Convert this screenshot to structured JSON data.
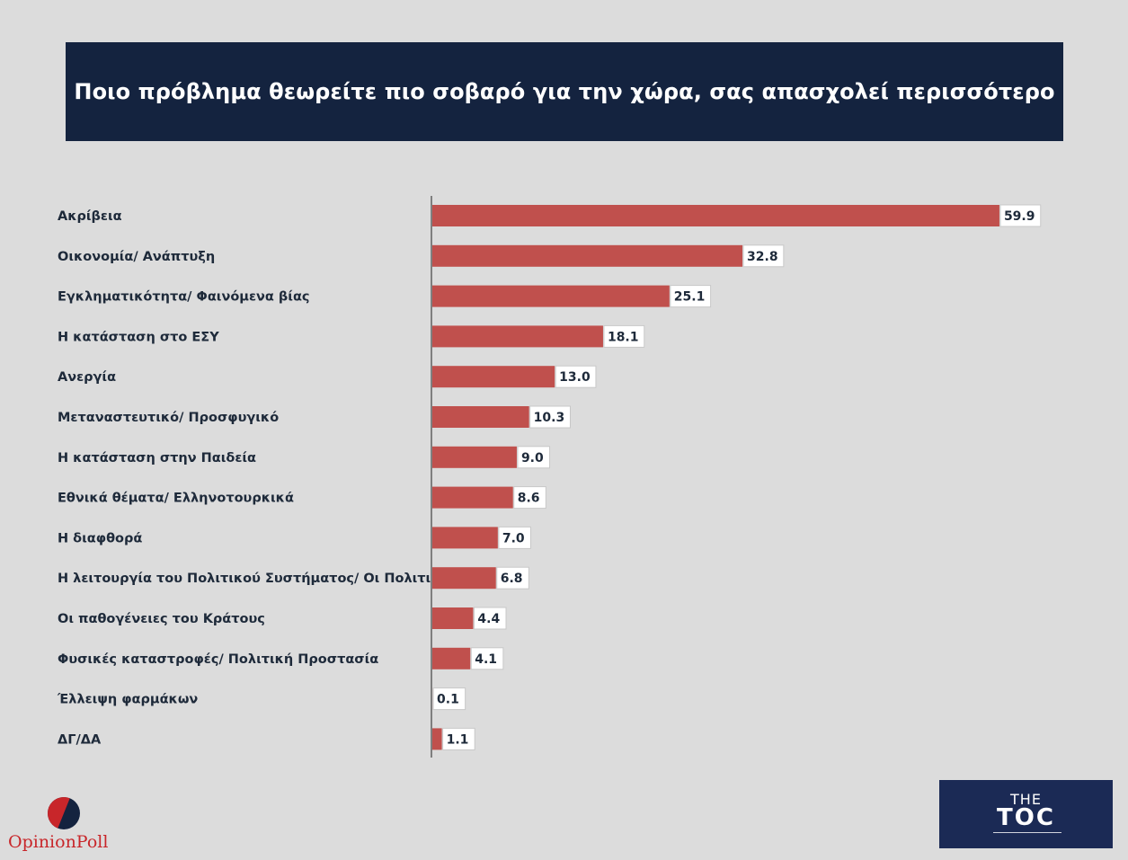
{
  "title": "Ποιο πρόβλημα θεωρείτε πιο σοβαρό για την χώρα, σας απασχολεί περισσότερο",
  "colors": {
    "bar": "#c0504d",
    "banner": "#14233f",
    "background": "#dcdcdc"
  },
  "chart_data": {
    "type": "bar",
    "orientation": "horizontal",
    "categories": [
      "Ακρίβεια",
      "Οικονομία/ Ανάπτυξη",
      "Εγκληματικότητα/ Φαινόμενα βίας",
      "Η κατάσταση στο ΕΣΥ",
      "Ανεργία",
      "Μεταναστευτικό/ Προσφυγικό",
      "Η κατάσταση στην Παιδεία",
      "Εθνικά θέματα/ Ελληνοτουρκικά",
      "Η διαφθορά",
      "Η λειτουργία του Πολιτικού Συστήματος/ Οι Πολιτικοί",
      "Οι παθογένειες του Κράτους",
      "Φυσικές καταστροφές/ Πολιτική Προστασία",
      "Έλλειψη φαρμάκων",
      "ΔΓ/ΔΑ"
    ],
    "values": [
      59.9,
      32.8,
      25.1,
      18.1,
      13.0,
      10.3,
      9.0,
      8.6,
      7.0,
      6.8,
      4.4,
      4.1,
      0.1,
      1.1
    ],
    "value_labels": [
      "59.9",
      "32.8",
      "25.1",
      "18.1",
      "13.0",
      "10.3",
      "9.0",
      "8.6",
      "7.0",
      "6.8",
      "4.4",
      "4.1",
      "0.1",
      "1.1"
    ],
    "xlim": [
      0,
      60
    ],
    "grid": false,
    "legend": "none"
  },
  "logos": {
    "opinion_poll": "OpinionPoll",
    "toc_the": "THE",
    "toc_main": "TOC"
  }
}
